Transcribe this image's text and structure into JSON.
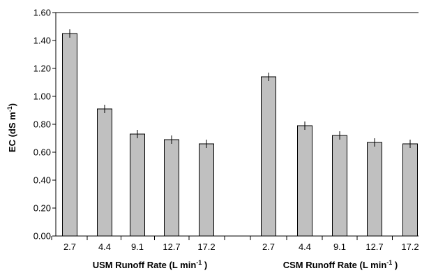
{
  "chart_data": {
    "type": "bar",
    "ylabel_main": "EC (dS m",
    "ylabel_sup": "-1",
    "ylabel_end": ")",
    "ylim": [
      0,
      1.6
    ],
    "yticks": [
      "0.00",
      "0.20",
      "0.40",
      "0.60",
      "0.80",
      "1.00",
      "1.20",
      "1.40",
      "1.60"
    ],
    "grid": false,
    "legend": "none",
    "bar_color": "#c0c0c0",
    "groups": [
      {
        "xlabel_main": "USM Runoff Rate (L min",
        "xlabel_sup": "-1",
        "xlabel_end": " )",
        "categories": [
          "2.7",
          "4.4",
          "9.1",
          "12.7",
          "17.2"
        ],
        "values": [
          1.45,
          0.91,
          0.73,
          0.69,
          0.66
        ],
        "errors": [
          0.03,
          0.03,
          0.03,
          0.03,
          0.03
        ]
      },
      {
        "xlabel_main": "CSM Runoff Rate (L min",
        "xlabel_sup": "-1",
        "xlabel_end": " )",
        "categories": [
          "2.7",
          "4.4",
          "9.1",
          "12.7",
          "17.2"
        ],
        "values": [
          1.14,
          0.79,
          0.72,
          0.67,
          0.66
        ],
        "errors": [
          0.03,
          0.03,
          0.03,
          0.03,
          0.03
        ]
      }
    ]
  }
}
